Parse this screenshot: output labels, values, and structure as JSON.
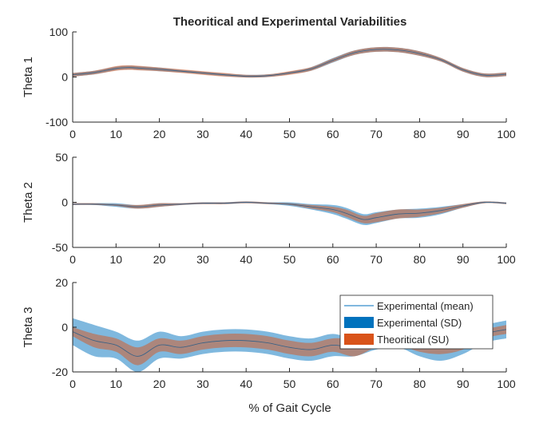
{
  "chart_data": {
    "type": "area",
    "title": "Theoritical and Experimental Variabilities",
    "xlabel": "% of Gait Cycle",
    "xlim": [
      0,
      100
    ],
    "xticks": [
      0,
      10,
      20,
      30,
      40,
      50,
      60,
      70,
      80,
      90,
      100
    ],
    "colors": {
      "experimental_mean": "#0072BD",
      "experimental_sd": "#0072BD",
      "theoretical_su": "#D95319"
    },
    "legend": {
      "placement": "inside-subplot-3-right",
      "entries": [
        "Experimental (mean)",
        "Experimental (SD)",
        "Theoritical (SU)"
      ]
    },
    "subplots": [
      {
        "ylabel": "Theta 1",
        "ylim": [
          -100,
          100
        ],
        "yticks": [
          -100,
          0,
          100
        ],
        "x": [
          0,
          5,
          10,
          13,
          15,
          20,
          25,
          30,
          35,
          40,
          45,
          50,
          55,
          60,
          65,
          70,
          75,
          80,
          85,
          90,
          95,
          100
        ],
        "mean": [
          5,
          10,
          19,
          21,
          20,
          17,
          13,
          9,
          5,
          2,
          3,
          9,
          18,
          37,
          54,
          61,
          60,
          52,
          38,
          16,
          4,
          6
        ],
        "sd": [
          4,
          4,
          4,
          4,
          4,
          4,
          3,
          3,
          3,
          3,
          3,
          3,
          4,
          5,
          5,
          5,
          5,
          5,
          4,
          4,
          4,
          4
        ],
        "su": [
          4,
          4,
          5,
          5,
          5,
          4,
          4,
          4,
          4,
          3,
          3,
          4,
          4,
          4,
          5,
          5,
          5,
          5,
          4,
          4,
          4,
          4
        ]
      },
      {
        "ylabel": "Theta 2",
        "ylim": [
          -50,
          50
        ],
        "yticks": [
          -50,
          0,
          50
        ],
        "x": [
          0,
          5,
          10,
          15,
          20,
          25,
          30,
          35,
          40,
          45,
          50,
          55,
          60,
          63,
          67,
          70,
          75,
          80,
          85,
          90,
          95,
          100
        ],
        "mean": [
          -2,
          -2,
          -3,
          -5,
          -3,
          -2,
          -1,
          -1,
          0,
          -1,
          -2,
          -5,
          -8,
          -12,
          -19,
          -17,
          -13,
          -12,
          -9,
          -4,
          0,
          -1
        ],
        "sd": [
          1,
          1,
          2,
          2,
          2,
          1,
          1,
          1,
          1,
          1,
          2,
          3,
          5,
          6,
          6,
          6,
          5,
          5,
          4,
          2,
          1,
          1
        ],
        "su": [
          1,
          1,
          1,
          2,
          2,
          1,
          1,
          1,
          1,
          1,
          1,
          2,
          3,
          4,
          4,
          5,
          5,
          4,
          3,
          2,
          1,
          1
        ]
      },
      {
        "ylabel": "Theta 3",
        "ylim": [
          -20,
          20
        ],
        "yticks": [
          -20,
          0,
          20
        ],
        "x": [
          0,
          5,
          10,
          15,
          20,
          25,
          30,
          35,
          40,
          45,
          50,
          55,
          60,
          65,
          70,
          75,
          80,
          85,
          90,
          95,
          100
        ],
        "mean": [
          -2,
          -6,
          -8,
          -13,
          -8,
          -9,
          -7,
          -6,
          -6,
          -7,
          -9,
          -10,
          -8,
          -9,
          -6,
          -5,
          -8,
          -9,
          -7,
          -3,
          -1
        ],
        "sd": [
          6,
          7,
          6,
          7,
          6,
          5,
          5,
          5,
          5,
          5,
          5,
          5,
          5,
          4,
          4,
          4,
          5,
          6,
          5,
          4,
          4
        ],
        "su": [
          2,
          3,
          3,
          4,
          3,
          3,
          3,
          3,
          3,
          3,
          3,
          3,
          3,
          4,
          3,
          3,
          3,
          3,
          3,
          2,
          2
        ]
      }
    ]
  }
}
